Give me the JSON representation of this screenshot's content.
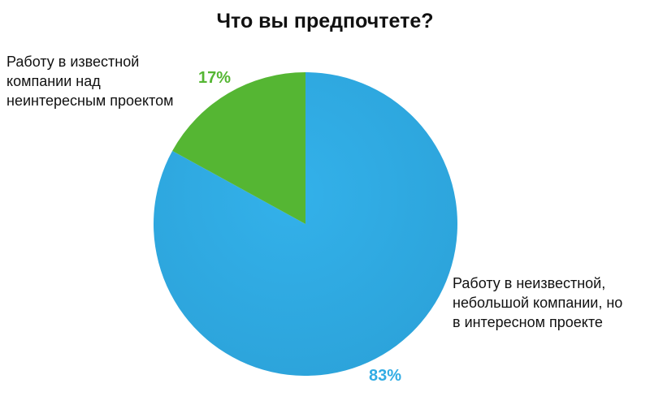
{
  "chart_data": {
    "type": "pie",
    "title": "Что вы предпочтете?",
    "slices": [
      {
        "label": "Работу в неизвестной,\nнебольшой компании,  но\nв интересном проекте",
        "value": 83,
        "value_label": "83%",
        "color": "#31ace4"
      },
      {
        "label": "Работу в известной\nкомпании  над\nнеинтересным проектом",
        "value": 17,
        "value_label": "17%",
        "color": "#55b633"
      }
    ]
  }
}
